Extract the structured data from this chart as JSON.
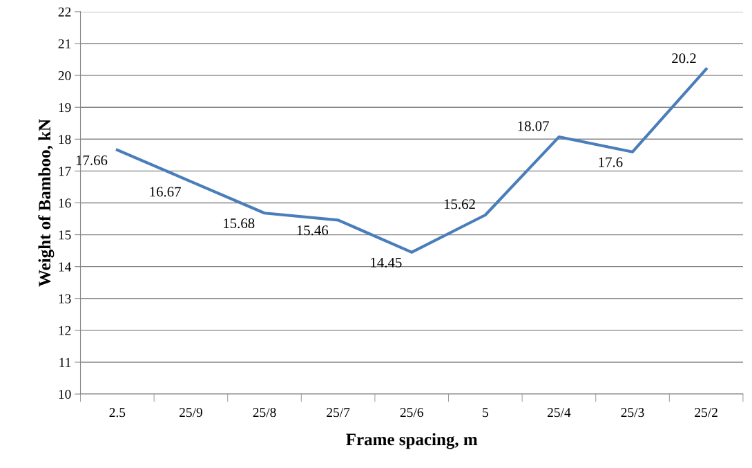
{
  "chart_data": {
    "type": "line",
    "xlabel": "Frame spacing, m",
    "ylabel": "Weight of Bamboo, kN",
    "categories": [
      "2.5",
      "25/9",
      "25/8",
      "25/7",
      "25/6",
      "5",
      "25/4",
      "25/3",
      "25/2"
    ],
    "series": [
      {
        "color": "#4a7ebb",
        "values": [
          17.66,
          16.67,
          15.68,
          15.46,
          14.45,
          15.62,
          18.07,
          17.6,
          20.2
        ]
      }
    ],
    "ylim": [
      10,
      22
    ],
    "yticks": [
      10,
      11,
      12,
      13,
      14,
      15,
      16,
      17,
      18,
      19,
      20,
      21,
      22
    ],
    "grid": "y",
    "data_labels": true,
    "marker": "none",
    "line_style": "solid",
    "legend": false
  }
}
